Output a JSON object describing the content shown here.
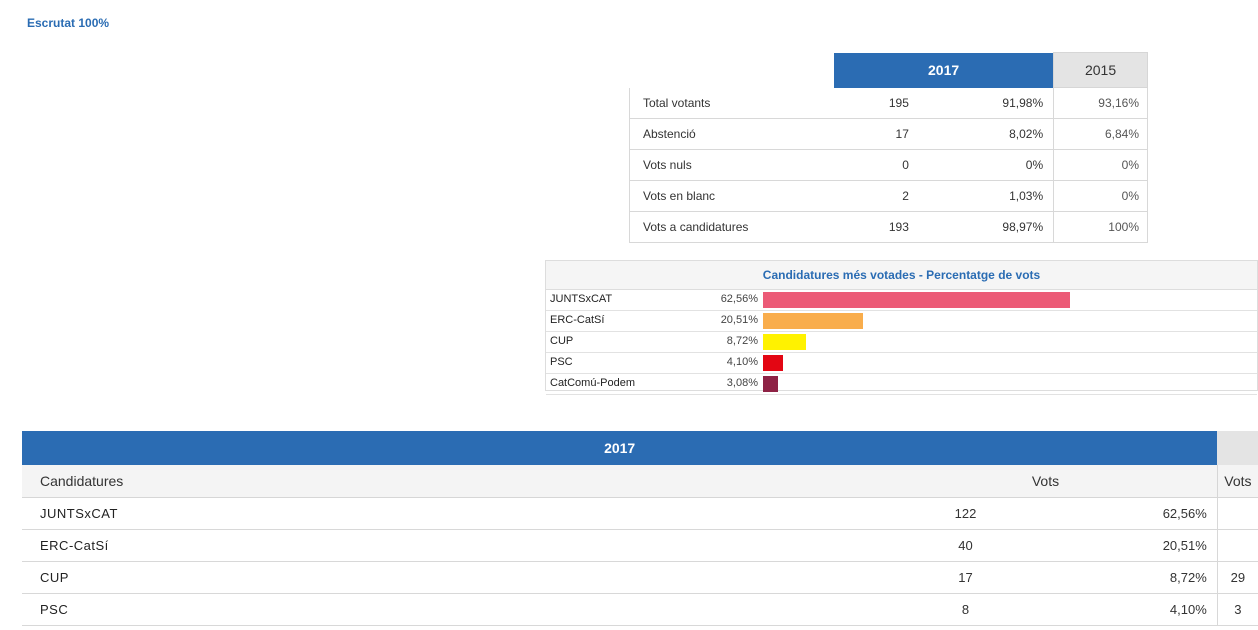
{
  "escrutat": "Escrutat 100%",
  "participation": {
    "year_current": "2017",
    "year_prev": "2015",
    "rows": [
      {
        "label": "Total votants",
        "n": "195",
        "pct": "91,98%",
        "prev": "93,16%"
      },
      {
        "label": "Abstenció",
        "n": "17",
        "pct": "8,02%",
        "prev": "6,84%"
      },
      {
        "label": "Vots nuls",
        "n": "0",
        "pct": "0%",
        "prev": "0%"
      },
      {
        "label": "Vots en blanc",
        "n": "2",
        "pct": "1,03%",
        "prev": "0%"
      },
      {
        "label": "Vots a candidatures",
        "n": "193",
        "pct": "98,97%",
        "prev": "100%"
      }
    ]
  },
  "chart_data": {
    "type": "bar",
    "title": "Candidatures més votades - Percentatge de vots",
    "categories": [
      "JUNTSxCAT",
      "ERC-CatSí",
      "CUP",
      "PSC",
      "CatComú-Podem"
    ],
    "labels": [
      "62,56%",
      "20,51%",
      "8,72%",
      "4,10%",
      "3,08%"
    ],
    "values": [
      62.56,
      20.51,
      8.72,
      4.1,
      3.08
    ],
    "colors": [
      "#ec5b77",
      "#f9ad4c",
      "#fff200",
      "#e30613",
      "#8e2245"
    ],
    "orientation": "horizontal",
    "xlim": [
      0,
      100
    ]
  },
  "results": {
    "year_current": "2017",
    "col_candidatures": "Candidatures",
    "col_vots": "Vots",
    "col_vots_prev": "Vots",
    "rows": [
      {
        "name": "JUNTSxCAT",
        "vots": "122",
        "pct": "62,56%",
        "prev": ""
      },
      {
        "name": "ERC-CatSí",
        "vots": "40",
        "pct": "20,51%",
        "prev": ""
      },
      {
        "name": "CUP",
        "vots": "17",
        "pct": "8,72%",
        "prev": "29"
      },
      {
        "name": "PSC",
        "vots": "8",
        "pct": "4,10%",
        "prev": "3"
      }
    ]
  }
}
